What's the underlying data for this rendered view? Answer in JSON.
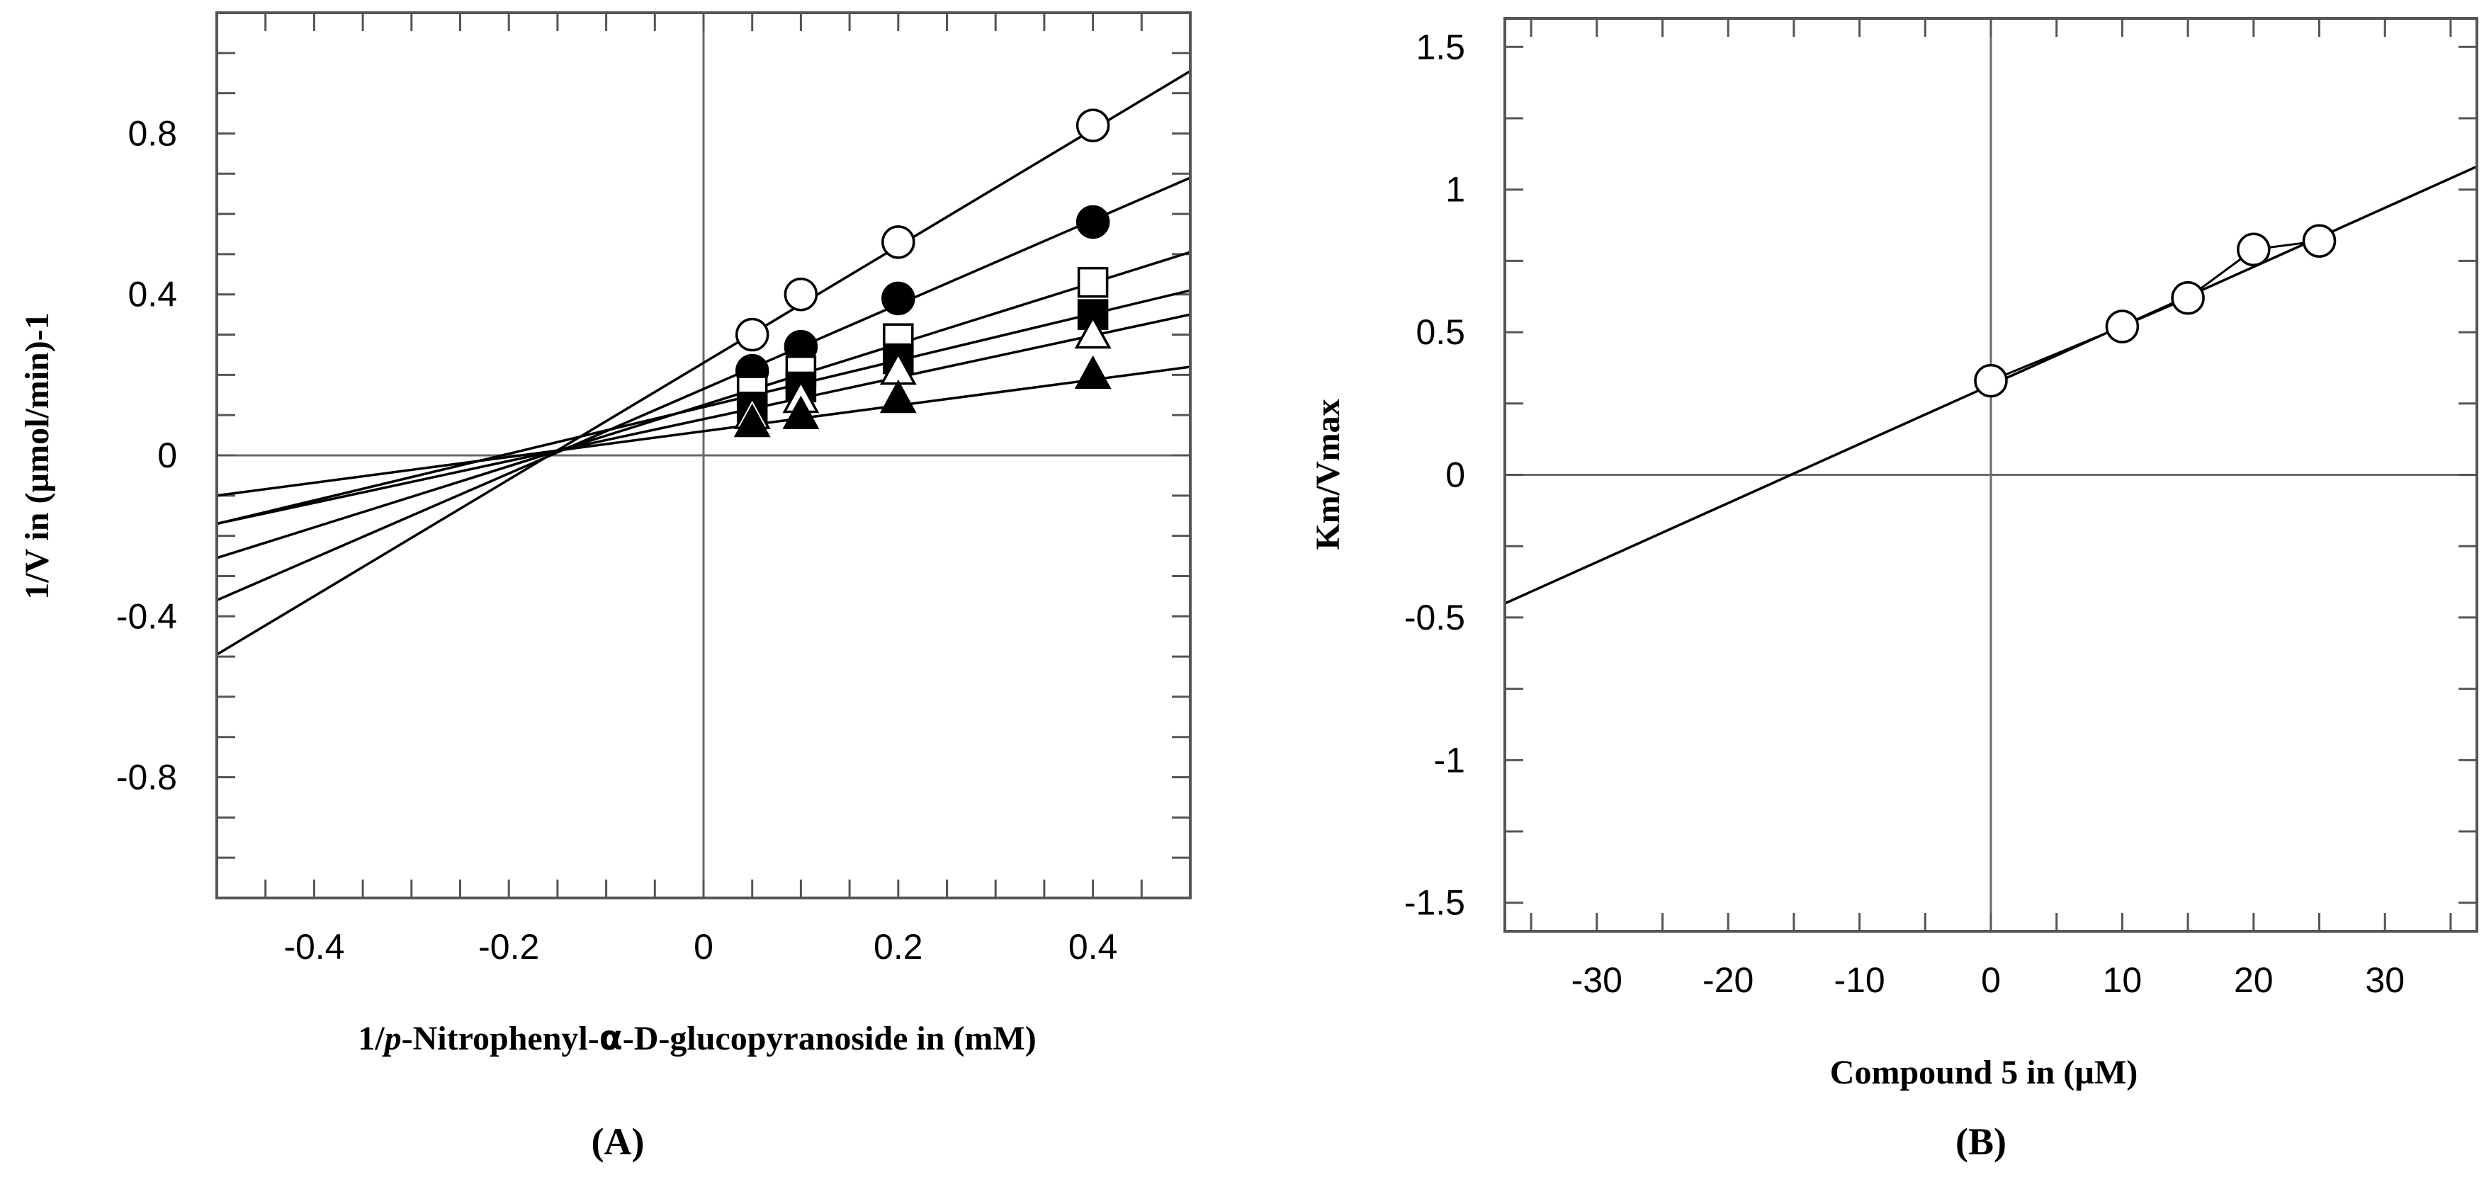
{
  "chart_data": [
    {
      "type": "scatter",
      "panel_label": "(A)",
      "title": "",
      "xlabel_parts": [
        "1/",
        "p",
        "-Nitrophenyl-",
        "α",
        "-D-glucopyranoside in (mM)"
      ],
      "ylabel": "1/V in (µmol/min)-1",
      "xlim": [
        -0.5,
        0.5
      ],
      "ylim": [
        -1.1,
        1.1
      ],
      "x_ticks": [
        -0.4,
        -0.2,
        0,
        0.2,
        0.4
      ],
      "x_tick_labels": [
        "-0.4",
        "-0.2",
        "0",
        "0.2",
        "0.4"
      ],
      "y_ticks": [
        -0.8,
        -0.4,
        0,
        0.4,
        0.8
      ],
      "y_tick_labels": [
        "-0.8",
        "-0.4",
        "0",
        "0.4",
        "0.8"
      ],
      "x_minor_step": 0.05,
      "y_minor_step": 0.1,
      "zero_lines": true,
      "series": [
        {
          "name": "open circles",
          "marker": "circle",
          "filled": false,
          "x": [
            0.05,
            0.1,
            0.2,
            0.4
          ],
          "y": [
            0.3,
            0.4,
            0.53,
            0.82
          ],
          "fit": {
            "slope": 1.45,
            "intercept": 0.23
          }
        },
        {
          "name": "filled circles",
          "marker": "circle",
          "filled": true,
          "x": [
            0.05,
            0.1,
            0.2,
            0.4
          ],
          "y": [
            0.21,
            0.27,
            0.39,
            0.58
          ],
          "fit": {
            "slope": 1.05,
            "intercept": 0.165
          }
        },
        {
          "name": "open squares",
          "marker": "square",
          "filled": false,
          "x": [
            0.05,
            0.1,
            0.2,
            0.4
          ],
          "y": [
            0.16,
            0.21,
            0.29,
            0.43
          ],
          "fit": {
            "slope": 0.76,
            "intercept": 0.125
          }
        },
        {
          "name": "filled squares",
          "marker": "square",
          "filled": true,
          "x": [
            0.05,
            0.1,
            0.2,
            0.4
          ],
          "y": [
            0.12,
            0.17,
            0.24,
            0.35
          ],
          "fit": {
            "slope": 0.58,
            "intercept": 0.12
          }
        },
        {
          "name": "open triangles",
          "marker": "triangle",
          "filled": false,
          "x": [
            0.05,
            0.1,
            0.2,
            0.4
          ],
          "y": [
            0.1,
            0.14,
            0.21,
            0.3
          ],
          "fit": {
            "slope": 0.52,
            "intercept": 0.09
          }
        },
        {
          "name": "filled triangles",
          "marker": "triangle",
          "filled": true,
          "x": [
            0.05,
            0.1,
            0.2,
            0.4
          ],
          "y": [
            0.08,
            0.1,
            0.14,
            0.2
          ],
          "fit": {
            "slope": 0.32,
            "intercept": 0.06
          }
        }
      ]
    },
    {
      "type": "scatter",
      "panel_label": "(B)",
      "title": "",
      "xlabel": "Compound 5 in (µM)",
      "ylabel": "Km/Vmax",
      "xlim": [
        -37,
        37
      ],
      "ylim": [
        -1.6,
        1.6
      ],
      "x_ticks": [
        -30,
        -20,
        -10,
        0,
        10,
        20,
        30
      ],
      "x_tick_labels": [
        "-30",
        "-20",
        "-10",
        "0",
        "10",
        "20",
        "30"
      ],
      "y_ticks": [
        -1.5,
        -1,
        -0.5,
        0,
        0.5,
        1,
        1.5
      ],
      "y_tick_labels": [
        "-1.5",
        "-1",
        "-0.5",
        "0",
        "0.5",
        "1",
        "1.5"
      ],
      "x_minor_step": 5,
      "y_minor_step": 0.25,
      "zero_lines": true,
      "series": [
        {
          "name": "Km/Vmax",
          "marker": "circle",
          "filled": false,
          "x": [
            0,
            10,
            15,
            20,
            25
          ],
          "y": [
            0.33,
            0.52,
            0.62,
            0.79,
            0.82
          ],
          "fit": {
            "slope": 0.0207,
            "intercept": 0.315,
            "x_range": [
              -37,
              37
            ]
          }
        }
      ]
    }
  ]
}
